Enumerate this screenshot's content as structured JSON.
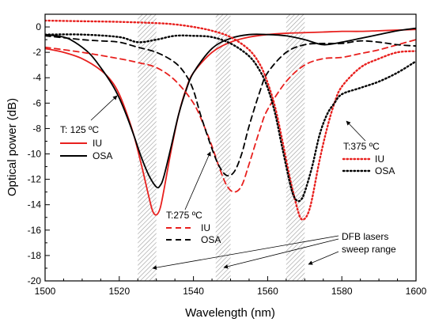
{
  "chart_data": {
    "type": "line",
    "xlabel": "Wavelength (nm)",
    "ylabel": "Optical power (dB)",
    "xlim": [
      1500,
      1600
    ],
    "ylim": [
      -20,
      1
    ],
    "xticks": [
      1500,
      1520,
      1540,
      1560,
      1580,
      1600
    ],
    "yticks": [
      0,
      -2,
      -4,
      -6,
      -8,
      -10,
      -12,
      -14,
      -16,
      -18,
      -20
    ],
    "grid": false,
    "shaded_bands": [
      [
        1525,
        1530
      ],
      [
        1546,
        1550
      ],
      [
        1565,
        1570
      ]
    ],
    "colors": {
      "IU": "#e8201e",
      "OSA": "#000000"
    },
    "series": [
      {
        "name": "IU",
        "group": "T: 125 ºC",
        "style": "solid",
        "color": "#e8201e",
        "x": [
          1500,
          1505,
          1510,
          1515,
          1518,
          1520,
          1522,
          1524,
          1526,
          1528,
          1529,
          1530,
          1531,
          1532,
          1534,
          1536,
          1538,
          1540,
          1545,
          1550,
          1555,
          1560,
          1565,
          1570,
          1575,
          1580,
          1585,
          1590,
          1595,
          1600
        ],
        "y": [
          -1.7,
          -2.0,
          -2.5,
          -3.4,
          -4.3,
          -5.3,
          -6.8,
          -8.6,
          -10.9,
          -13.4,
          -14.5,
          -14.8,
          -14.3,
          -12.9,
          -9.7,
          -6.9,
          -4.9,
          -3.6,
          -2.0,
          -1.2,
          -0.8,
          -0.6,
          -0.5,
          -0.45,
          -0.4,
          -0.35,
          -0.35,
          -0.3,
          -0.25,
          -0.2
        ]
      },
      {
        "name": "OSA",
        "group": "T: 125 ºC",
        "style": "solid",
        "color": "#000000",
        "x": [
          1500,
          1505,
          1508,
          1512,
          1515,
          1518,
          1520,
          1522,
          1524,
          1526,
          1528,
          1530,
          1531,
          1532,
          1534,
          1536,
          1538,
          1540,
          1545,
          1550,
          1555,
          1560,
          1565,
          1570,
          1575,
          1580,
          1585,
          1590,
          1595,
          1600
        ],
        "y": [
          -0.6,
          -0.8,
          -1.2,
          -2.1,
          -3.2,
          -4.5,
          -5.6,
          -7.0,
          -8.6,
          -10.3,
          -11.7,
          -12.6,
          -12.5,
          -11.8,
          -9.4,
          -6.9,
          -5.0,
          -3.6,
          -1.7,
          -0.9,
          -0.6,
          -0.6,
          -0.7,
          -1.0,
          -1.4,
          -1.2,
          -0.9,
          -0.6,
          -0.3,
          -0.1
        ]
      },
      {
        "name": "IU",
        "group": "T:275 ºC",
        "style": "dashed",
        "color": "#e8201e",
        "x": [
          1500,
          1510,
          1520,
          1525,
          1530,
          1535,
          1540,
          1543,
          1545,
          1547,
          1549,
          1551,
          1553,
          1555,
          1558,
          1560,
          1565,
          1570,
          1575,
          1580,
          1585,
          1590,
          1595,
          1600
        ],
        "y": [
          -1.6,
          -2.0,
          -2.5,
          -2.8,
          -3.2,
          -4.2,
          -6.0,
          -7.9,
          -9.4,
          -11.1,
          -12.5,
          -13.0,
          -12.5,
          -10.8,
          -8.0,
          -6.5,
          -4.3,
          -3.0,
          -2.5,
          -2.4,
          -2.1,
          -1.8,
          -1.4,
          -1.0
        ]
      },
      {
        "name": "OSA",
        "group": "T:275 ºC",
        "style": "dashed",
        "color": "#000000",
        "x": [
          1500,
          1510,
          1515,
          1520,
          1525,
          1530,
          1535,
          1538,
          1540,
          1542,
          1545,
          1547,
          1549,
          1551,
          1553,
          1555,
          1558,
          1560,
          1565,
          1570,
          1575,
          1580,
          1585,
          1590,
          1595,
          1600
        ],
        "y": [
          -0.7,
          -1.0,
          -1.1,
          -1.2,
          -1.6,
          -2.0,
          -2.8,
          -3.8,
          -5.0,
          -7.0,
          -9.6,
          -11.0,
          -11.7,
          -11.4,
          -10.0,
          -7.8,
          -5.0,
          -3.6,
          -2.0,
          -1.4,
          -1.3,
          -1.3,
          -1.1,
          -1.2,
          -1.4,
          -1.5
        ]
      },
      {
        "name": "IU",
        "group": "T:375 ºC",
        "style": "dotted",
        "color": "#e8201e",
        "x": [
          1500,
          1510,
          1520,
          1530,
          1535,
          1540,
          1545,
          1550,
          1555,
          1558,
          1560,
          1562,
          1564,
          1566,
          1568,
          1569,
          1570,
          1571,
          1572,
          1574,
          1576,
          1578,
          1580,
          1585,
          1590,
          1595,
          1600
        ],
        "y": [
          0.5,
          0.45,
          0.4,
          0.3,
          0.2,
          0.0,
          -0.3,
          -0.8,
          -1.8,
          -3.0,
          -4.4,
          -6.3,
          -9.0,
          -11.9,
          -14.3,
          -15.1,
          -15.1,
          -14.6,
          -13.5,
          -10.5,
          -8.0,
          -6.0,
          -4.7,
          -3.2,
          -2.5,
          -2.0,
          -1.9
        ]
      },
      {
        "name": "OSA",
        "group": "T:375 ºC",
        "style": "dotted",
        "color": "#000000",
        "x": [
          1500,
          1510,
          1520,
          1525,
          1530,
          1535,
          1540,
          1545,
          1550,
          1555,
          1558,
          1560,
          1562,
          1564,
          1566,
          1567,
          1568,
          1569,
          1570,
          1572,
          1574,
          1576,
          1578,
          1580,
          1585,
          1590,
          1595,
          1600
        ],
        "y": [
          -0.6,
          -0.6,
          -0.8,
          -1.2,
          -1.0,
          -0.7,
          -0.7,
          -0.8,
          -1.3,
          -2.3,
          -3.5,
          -4.8,
          -6.8,
          -9.6,
          -12.3,
          -13.3,
          -13.7,
          -13.6,
          -13.0,
          -11.0,
          -8.5,
          -6.9,
          -6.0,
          -5.3,
          -4.8,
          -4.3,
          -3.6,
          -2.7
        ]
      }
    ],
    "annotations": {
      "legend_125": {
        "title": "T: 125 ºC",
        "iu": "IU",
        "osa": "OSA"
      },
      "legend_275": {
        "title": "T:275 ºC",
        "iu": "IU",
        "osa": "OSA"
      },
      "legend_375": {
        "title": "T:375 ºC",
        "iu": "IU",
        "osa": "OSA"
      },
      "dfb_line1": "DFB lasers",
      "dfb_line2": "sweep range"
    }
  }
}
